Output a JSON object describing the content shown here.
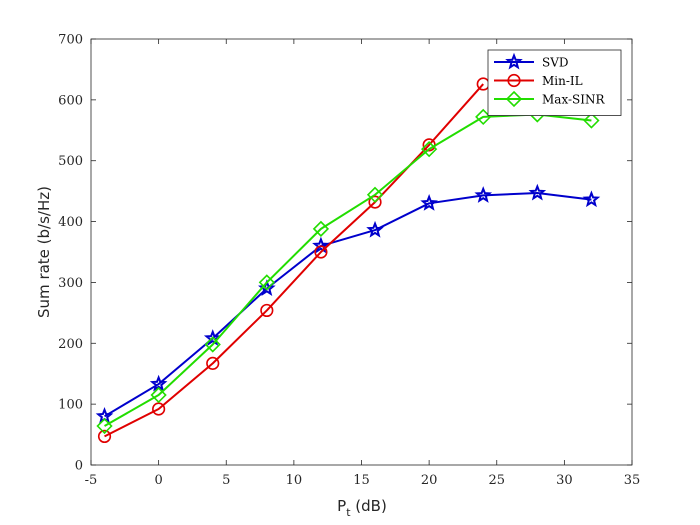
{
  "chart_data": {
    "type": "line",
    "xlabel_main": "P",
    "xlabel_sub": "t",
    "xlabel_unit": " (dB)",
    "ylabel": "Sum rate (b/s/Hz)",
    "xlim": [
      -5,
      35
    ],
    "ylim": [
      0,
      700
    ],
    "xticks": [
      -5,
      0,
      5,
      10,
      15,
      20,
      25,
      30,
      35
    ],
    "yticks": [
      0,
      100,
      200,
      300,
      400,
      500,
      600,
      700
    ],
    "grid": false,
    "legend_position": "top-right",
    "series": [
      {
        "name": "SVD",
        "color": "#0000cc",
        "marker": "star",
        "x": [
          -4,
          0,
          4,
          8,
          12,
          16,
          20,
          24,
          28,
          32
        ],
        "y": [
          80,
          133,
          208,
          290,
          360,
          386,
          430,
          443,
          447,
          436
        ]
      },
      {
        "name": "Min-IL",
        "color": "#e00000",
        "marker": "circle",
        "x": [
          -4,
          0,
          4,
          8,
          12,
          16,
          20,
          24
        ],
        "y": [
          47,
          92,
          167,
          254,
          350,
          432,
          526,
          626
        ]
      },
      {
        "name": "Max-SINR",
        "color": "#22dd00",
        "marker": "diamond",
        "x": [
          -4,
          0,
          4,
          8,
          12,
          16,
          20,
          24,
          28,
          32
        ],
        "y": [
          64,
          115,
          198,
          300,
          388,
          444,
          519,
          572,
          576,
          566
        ]
      }
    ]
  }
}
